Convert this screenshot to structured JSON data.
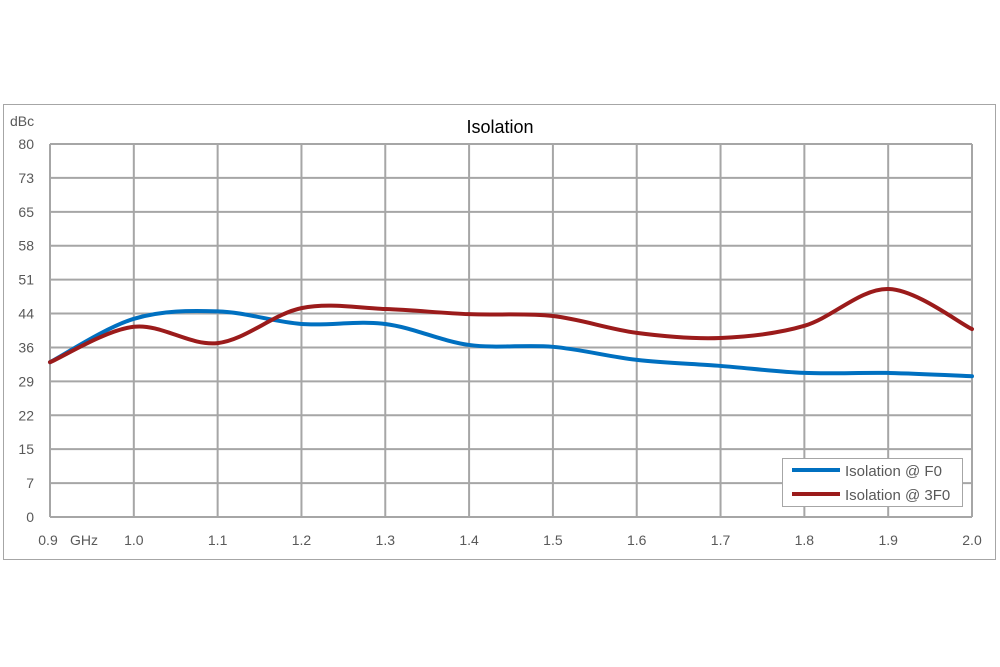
{
  "chart_data": {
    "type": "line",
    "title": "Isolation",
    "ylabel": "dBc",
    "xlabel": "GHz",
    "ylim": [
      0,
      80
    ],
    "xlim": [
      0.9,
      2.0
    ],
    "grid": true,
    "legend_position": "bottom-right",
    "y_tick_labels": [
      "0",
      "7",
      "15",
      "22",
      "29",
      "36",
      "44",
      "51",
      "58",
      "65",
      "73",
      "80"
    ],
    "x_tick_labels": [
      "0.9",
      "1.0",
      "1.1",
      "1.2",
      "1.3",
      "1.4",
      "1.5",
      "1.6",
      "1.7",
      "1.8",
      "1.9",
      "2.0"
    ],
    "x": [
      0.9,
      1.0,
      1.1,
      1.2,
      1.3,
      1.4,
      1.5,
      1.6,
      1.7,
      1.8,
      1.9,
      2.0
    ],
    "series": [
      {
        "name": "Isolation @ F0",
        "color": "#0070C0",
        "values": [
          33.2,
          42.5,
          44.1,
          41.4,
          41.4,
          36.9,
          36.5,
          33.7,
          32.4,
          30.9,
          30.9,
          30.2
        ]
      },
      {
        "name": "Isolation @ 3F0",
        "color": "#9B1B1B",
        "values": [
          33.2,
          40.8,
          37.3,
          44.8,
          44.6,
          43.5,
          43.1,
          39.5,
          38.4,
          41.0,
          48.9,
          40.3
        ]
      }
    ]
  }
}
